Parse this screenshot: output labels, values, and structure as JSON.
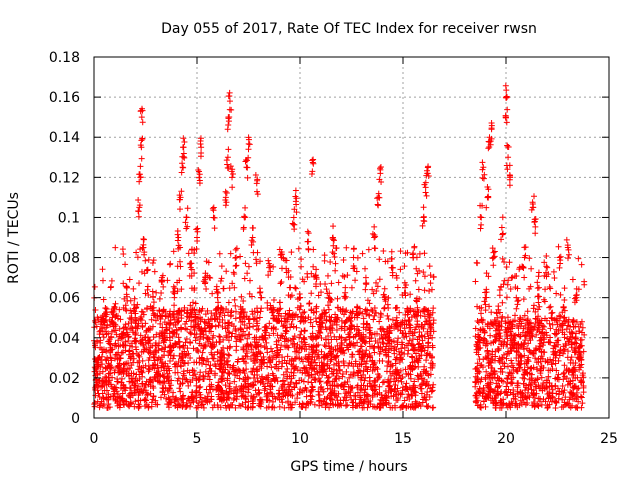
{
  "chart_data": {
    "type": "scatter",
    "title": "Day 055 of 2017, Rate Of TEC Index for receiver rwsn",
    "xlabel": "GPS time / hours",
    "ylabel": "ROTI / TECUs",
    "xlim": [
      0,
      25
    ],
    "ylim": [
      0,
      0.18
    ],
    "x_ticks": [
      "0",
      "5",
      "10",
      "15",
      "20",
      "25"
    ],
    "y_ticks": [
      "0",
      "0.02",
      "0.04",
      "0.06",
      "0.08",
      "0.1",
      "0.12",
      "0.14",
      "0.16",
      "0.18"
    ],
    "grid": true,
    "legend": "none",
    "marker": "+",
    "color": "#ff0000",
    "series": [
      {
        "points": [
          [
            0.2,
            0.03
          ],
          [
            0.4,
            0.045
          ],
          [
            0.6,
            0.02
          ],
          [
            0.8,
            0.035
          ],
          [
            1.0,
            0.055
          ],
          [
            1.2,
            0.025
          ],
          [
            1.4,
            0.04
          ],
          [
            1.6,
            0.065
          ],
          [
            1.8,
            0.03
          ],
          [
            2.0,
            0.05
          ],
          [
            2.2,
            0.105
          ],
          [
            2.25,
            0.12
          ],
          [
            2.3,
            0.135
          ],
          [
            2.32,
            0.15
          ],
          [
            2.4,
            0.085
          ],
          [
            2.5,
            0.04
          ],
          [
            2.7,
            0.03
          ],
          [
            2.9,
            0.055
          ],
          [
            3.1,
            0.025
          ],
          [
            3.3,
            0.07
          ],
          [
            3.5,
            0.045
          ],
          [
            3.7,
            0.035
          ],
          [
            3.9,
            0.06
          ],
          [
            4.1,
            0.09
          ],
          [
            4.2,
            0.11
          ],
          [
            4.3,
            0.125
          ],
          [
            4.35,
            0.135
          ],
          [
            4.5,
            0.1
          ],
          [
            4.7,
            0.075
          ],
          [
            4.9,
            0.05
          ],
          [
            5.0,
            0.09
          ],
          [
            5.1,
            0.12
          ],
          [
            5.2,
            0.135
          ],
          [
            5.4,
            0.07
          ],
          [
            5.6,
            0.045
          ],
          [
            5.8,
            0.1
          ],
          [
            6.0,
            0.06
          ],
          [
            6.2,
            0.03
          ],
          [
            6.4,
            0.11
          ],
          [
            6.5,
            0.13
          ],
          [
            6.55,
            0.148
          ],
          [
            6.6,
            0.158
          ],
          [
            6.7,
            0.12
          ],
          [
            6.9,
            0.08
          ],
          [
            7.1,
            0.05
          ],
          [
            7.3,
            0.1
          ],
          [
            7.4,
            0.125
          ],
          [
            7.5,
            0.134
          ],
          [
            7.7,
            0.09
          ],
          [
            7.9,
            0.117
          ],
          [
            8.1,
            0.06
          ],
          [
            8.3,
            0.04
          ],
          [
            8.5,
            0.075
          ],
          [
            8.7,
            0.055
          ],
          [
            8.9,
            0.035
          ],
          [
            9.1,
            0.08
          ],
          [
            9.3,
            0.045
          ],
          [
            9.5,
            0.065
          ],
          [
            9.7,
            0.1
          ],
          [
            9.8,
            0.108
          ],
          [
            10.0,
            0.06
          ],
          [
            10.2,
            0.04
          ],
          [
            10.4,
            0.088
          ],
          [
            10.6,
            0.123
          ],
          [
            10.8,
            0.07
          ],
          [
            11.0,
            0.045
          ],
          [
            11.2,
            0.03
          ],
          [
            11.4,
            0.06
          ],
          [
            11.6,
            0.09
          ],
          [
            11.8,
            0.05
          ],
          [
            12.0,
            0.035
          ],
          [
            12.2,
            0.065
          ],
          [
            12.4,
            0.04
          ],
          [
            12.6,
            0.08
          ],
          [
            12.8,
            0.055
          ],
          [
            13.0,
            0.03
          ],
          [
            13.2,
            0.07
          ],
          [
            13.4,
            0.045
          ],
          [
            13.6,
            0.09
          ],
          [
            13.8,
            0.11
          ],
          [
            13.9,
            0.122
          ],
          [
            14.1,
            0.06
          ],
          [
            14.3,
            0.04
          ],
          [
            14.5,
            0.075
          ],
          [
            14.7,
            0.05
          ],
          [
            14.9,
            0.03
          ],
          [
            15.1,
            0.065
          ],
          [
            15.3,
            0.045
          ],
          [
            15.5,
            0.08
          ],
          [
            15.7,
            0.055
          ],
          [
            15.9,
            0.035
          ],
          [
            16.0,
            0.1
          ],
          [
            16.1,
            0.115
          ],
          [
            16.2,
            0.122
          ],
          [
            16.3,
            0.05
          ],
          [
            16.4,
            0.03
          ],
          [
            18.7,
            0.04
          ],
          [
            18.8,
            0.1
          ],
          [
            18.9,
            0.125
          ],
          [
            19.0,
            0.06
          ],
          [
            19.1,
            0.11
          ],
          [
            19.2,
            0.14
          ],
          [
            19.3,
            0.144
          ],
          [
            19.4,
            0.08
          ],
          [
            19.6,
            0.05
          ],
          [
            19.8,
            0.095
          ],
          [
            20.0,
            0.15
          ],
          [
            20.05,
            0.16
          ],
          [
            20.1,
            0.13
          ],
          [
            20.2,
            0.12
          ],
          [
            20.3,
            0.035
          ],
          [
            20.5,
            0.06
          ],
          [
            20.7,
            0.03
          ],
          [
            20.9,
            0.08
          ],
          [
            21.1,
            0.045
          ],
          [
            21.3,
            0.105
          ],
          [
            21.4,
            0.098
          ],
          [
            21.6,
            0.065
          ],
          [
            21.8,
            0.04
          ],
          [
            22.0,
            0.075
          ],
          [
            22.2,
            0.05
          ],
          [
            22.4,
            0.03
          ],
          [
            22.6,
            0.08
          ],
          [
            22.8,
            0.055
          ],
          [
            23.0,
            0.085
          ],
          [
            23.2,
            0.04
          ],
          [
            23.4,
            0.06
          ],
          [
            23.6,
            0.03
          ]
        ]
      }
    ],
    "density_bands": [
      {
        "x": [
          0.0,
          16.5
        ],
        "y_base": [
          0.005,
          0.055
        ],
        "y_peak": [
          0.01,
          0.085
        ]
      },
      {
        "x": [
          18.5,
          23.8
        ],
        "y_base": [
          0.005,
          0.05
        ],
        "y_peak": [
          0.01,
          0.08
        ]
      }
    ]
  }
}
